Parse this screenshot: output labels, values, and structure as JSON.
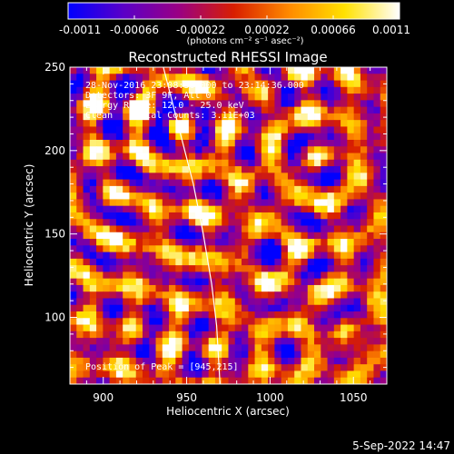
{
  "chart_data": {
    "type": "heatmap",
    "title": "Reconstructed RHESSI Image",
    "xlabel": "Heliocentric X (arcsec)",
    "ylabel": "Heliocentric Y (arcsec)",
    "xlim": [
      880,
      1070
    ],
    "ylim": [
      60,
      250
    ],
    "x_ticks": [
      900,
      950,
      1000,
      1050
    ],
    "y_ticks": [
      100,
      150,
      200,
      250
    ],
    "colorbar": {
      "range": [
        -0.0011,
        0.0011
      ],
      "tick_values": [
        -0.0011,
        -0.00066,
        -0.00022,
        0.00022,
        0.00066,
        0.0011
      ],
      "tick_labels": [
        "-0.0011",
        "-0.00066",
        "-0.00022",
        "0.00022",
        "0.00066",
        "0.0011"
      ],
      "unit_label": "(photons cm⁻² s⁻¹ asec⁻²)",
      "colormap": [
        "#0000ff",
        "#5a00c8",
        "#9a0084",
        "#d81e00",
        "#ff8a00",
        "#ffe100",
        "#ffffff"
      ]
    },
    "annotations": [
      "28-Nov-2016 23:08:36.000 to 23:14:36.000",
      "Detectors: 3F 9F, Att 0",
      "Energy Range: 12.0 - 25.0 keV",
      "Clean    Total Counts: 3.11E+03",
      "Position of Peak = [945,215]"
    ],
    "peak": [
      945,
      215
    ],
    "limb_curve": [
      [
        936,
        250
      ],
      [
        945,
        215
      ],
      [
        954,
        180
      ],
      [
        960,
        150
      ],
      [
        965,
        120
      ],
      [
        968,
        95
      ],
      [
        970,
        60
      ]
    ],
    "grid": false,
    "legend": "none"
  },
  "footer": {
    "date": "5-Sep-2022 14:47"
  }
}
